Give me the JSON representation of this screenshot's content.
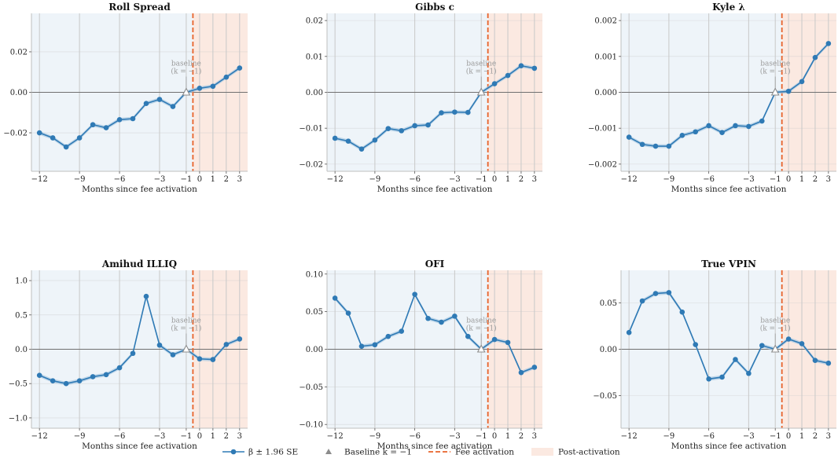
{
  "chart_data": [
    {
      "type": "line",
      "title": "Roll Spread",
      "xlabel": "Months since fee activation",
      "ylabel": "",
      "x": [
        -12,
        -11,
        -10,
        -9,
        -8,
        -7,
        -6,
        -5,
        -4,
        -3,
        -2,
        -1,
        0,
        1,
        2,
        3
      ],
      "values": [
        -0.02,
        -0.0225,
        -0.027,
        -0.0225,
        -0.016,
        -0.0175,
        -0.0135,
        -0.013,
        -0.0055,
        -0.0035,
        -0.007,
        0.0,
        0.002,
        0.003,
        0.0075,
        0.012
      ],
      "xticks": [
        -12,
        -9,
        -6,
        -3,
        -1,
        0,
        1,
        2,
        3
      ],
      "yticks": [
        -0.02,
        0.0,
        0.02
      ],
      "ytick_labels": [
        "−0.02",
        "0.00",
        "0.02"
      ],
      "xlim": [
        -12.6,
        3.6
      ],
      "ylim": [
        -0.039,
        0.039
      ],
      "grid": true
    },
    {
      "type": "line",
      "title": "Gibbs c",
      "xlabel": "Months since fee activation",
      "ylabel": "",
      "x": [
        -12,
        -11,
        -10,
        -9,
        -8,
        -7,
        -6,
        -5,
        -4,
        -3,
        -2,
        -1,
        0,
        1,
        2,
        3
      ],
      "values": [
        -0.0128,
        -0.0136,
        -0.0158,
        -0.0133,
        -0.0101,
        -0.0107,
        -0.0093,
        -0.0091,
        -0.0057,
        -0.0055,
        -0.0056,
        0.0,
        0.0024,
        0.0047,
        0.0074,
        0.0067
      ],
      "xticks": [
        -12,
        -9,
        -6,
        -3,
        -1,
        0,
        1,
        2,
        3
      ],
      "yticks": [
        -0.02,
        -0.01,
        0.0,
        0.01,
        0.02
      ],
      "ytick_labels": [
        "−0.02",
        "−0.01",
        "0.00",
        "0.01",
        "0.02"
      ],
      "xlim": [
        -12.6,
        3.6
      ],
      "ylim": [
        -0.022,
        0.022
      ],
      "grid": true
    },
    {
      "type": "line",
      "title": "Kyle λ",
      "xlabel": "Months since fee activation",
      "ylabel": "",
      "x": [
        -12,
        -11,
        -10,
        -9,
        -8,
        -7,
        -6,
        -5,
        -4,
        -3,
        -2,
        -1,
        0,
        1,
        2,
        3
      ],
      "values": [
        -0.00125,
        -0.00145,
        -0.0015,
        -0.0015,
        -0.0012,
        -0.0011,
        -0.00093,
        -0.00112,
        -0.00093,
        -0.00095,
        -0.0008,
        0.0,
        3e-05,
        0.0003,
        0.00097,
        0.00136
      ],
      "xticks": [
        -12,
        -9,
        -6,
        -3,
        -1,
        0,
        1,
        2,
        3
      ],
      "yticks": [
        -0.002,
        -0.001,
        0.0,
        0.001,
        0.002
      ],
      "ytick_labels": [
        "−0.002",
        "−0.001",
        "0.000",
        "0.001",
        "0.002"
      ],
      "xlim": [
        -12.6,
        3.6
      ],
      "ylim": [
        -0.0022,
        0.0022
      ],
      "grid": true
    },
    {
      "type": "line",
      "title": "Amihud ILLIQ",
      "xlabel": "Months since fee activation",
      "ylabel": "",
      "x": [
        -12,
        -11,
        -10,
        -9,
        -8,
        -7,
        -6,
        -5,
        -4,
        -3,
        -2,
        -1,
        0,
        1,
        2,
        3
      ],
      "values": [
        -0.38,
        -0.46,
        -0.5,
        -0.46,
        -0.4,
        -0.37,
        -0.27,
        -0.06,
        0.77,
        0.06,
        -0.08,
        0.0,
        -0.14,
        -0.15,
        0.07,
        0.15
      ],
      "xticks": [
        -12,
        -9,
        -6,
        -3,
        -1,
        0,
        1,
        2,
        3
      ],
      "yticks": [
        -1.0,
        -0.5,
        0.0,
        0.5,
        1.0
      ],
      "ytick_labels": [
        "−1.0",
        "−0.5",
        "0.0",
        "0.5",
        "1.0"
      ],
      "xlim": [
        -12.6,
        3.6
      ],
      "ylim": [
        -1.15,
        1.15
      ],
      "grid": true
    },
    {
      "type": "line",
      "title": "OFI",
      "xlabel": "Months since fee activation",
      "ylabel": "",
      "x": [
        -12,
        -11,
        -10,
        -9,
        -8,
        -7,
        -6,
        -5,
        -4,
        -3,
        -2,
        -1,
        0,
        1,
        2,
        3
      ],
      "values": [
        0.068,
        0.048,
        0.004,
        0.006,
        0.017,
        0.024,
        0.073,
        0.041,
        0.036,
        0.044,
        0.017,
        0.0,
        0.013,
        0.009,
        -0.031,
        -0.024
      ],
      "xticks": [
        -12,
        -9,
        -6,
        -3,
        -1,
        0,
        1,
        2,
        3
      ],
      "yticks": [
        -0.1,
        -0.05,
        0.0,
        0.05,
        0.1
      ],
      "ytick_labels": [
        "−0.10",
        "−0.05",
        "0.00",
        "0.05",
        "0.10"
      ],
      "xlim": [
        -12.6,
        3.6
      ],
      "ylim": [
        -0.105,
        0.105
      ],
      "grid": true
    },
    {
      "type": "line",
      "title": "True VPIN",
      "xlabel": "Months since fee activation",
      "ylabel": "",
      "x": [
        -12,
        -11,
        -10,
        -9,
        -8,
        -7,
        -6,
        -5,
        -4,
        -3,
        -2,
        -1,
        0,
        1,
        2,
        3
      ],
      "values": [
        0.018,
        0.052,
        0.06,
        0.061,
        0.04,
        0.005,
        -0.032,
        -0.03,
        -0.011,
        -0.026,
        0.004,
        0.0,
        0.011,
        0.006,
        -0.012,
        -0.015
      ],
      "xticks": [
        -12,
        -9,
        -6,
        -3,
        -1,
        0,
        1,
        2,
        3
      ],
      "yticks": [
        -0.05,
        0.0,
        0.05
      ],
      "ytick_labels": [
        "−0.05",
        "0.00",
        "0.05"
      ],
      "xlim": [
        -12.6,
        3.6
      ],
      "ylim": [
        -0.085,
        0.085
      ],
      "grid": true
    }
  ],
  "annotation": {
    "baseline_line1": "baseline",
    "baseline_line2": "(k = −1)"
  },
  "legend": {
    "placement": "bottom-center",
    "items": [
      {
        "kind": "series",
        "label": "β ± 1.96 SE"
      },
      {
        "kind": "baseline",
        "label": "Baseline k = −1"
      },
      {
        "kind": "fee",
        "label": "Fee activation"
      },
      {
        "kind": "post",
        "label": "Post-activation"
      }
    ]
  },
  "colors": {
    "series": "#2f7ab5",
    "band": "#a9c9e2",
    "pre_shade": "#eef4f9",
    "post_shade": "#fbe9e1",
    "fee_line": "#e8632a",
    "baseline_marker": "#8c8c8c",
    "zero_line": "#707070",
    "grid": "#c8c8c8",
    "axis": "#bfbfbf",
    "text": "#222222"
  }
}
